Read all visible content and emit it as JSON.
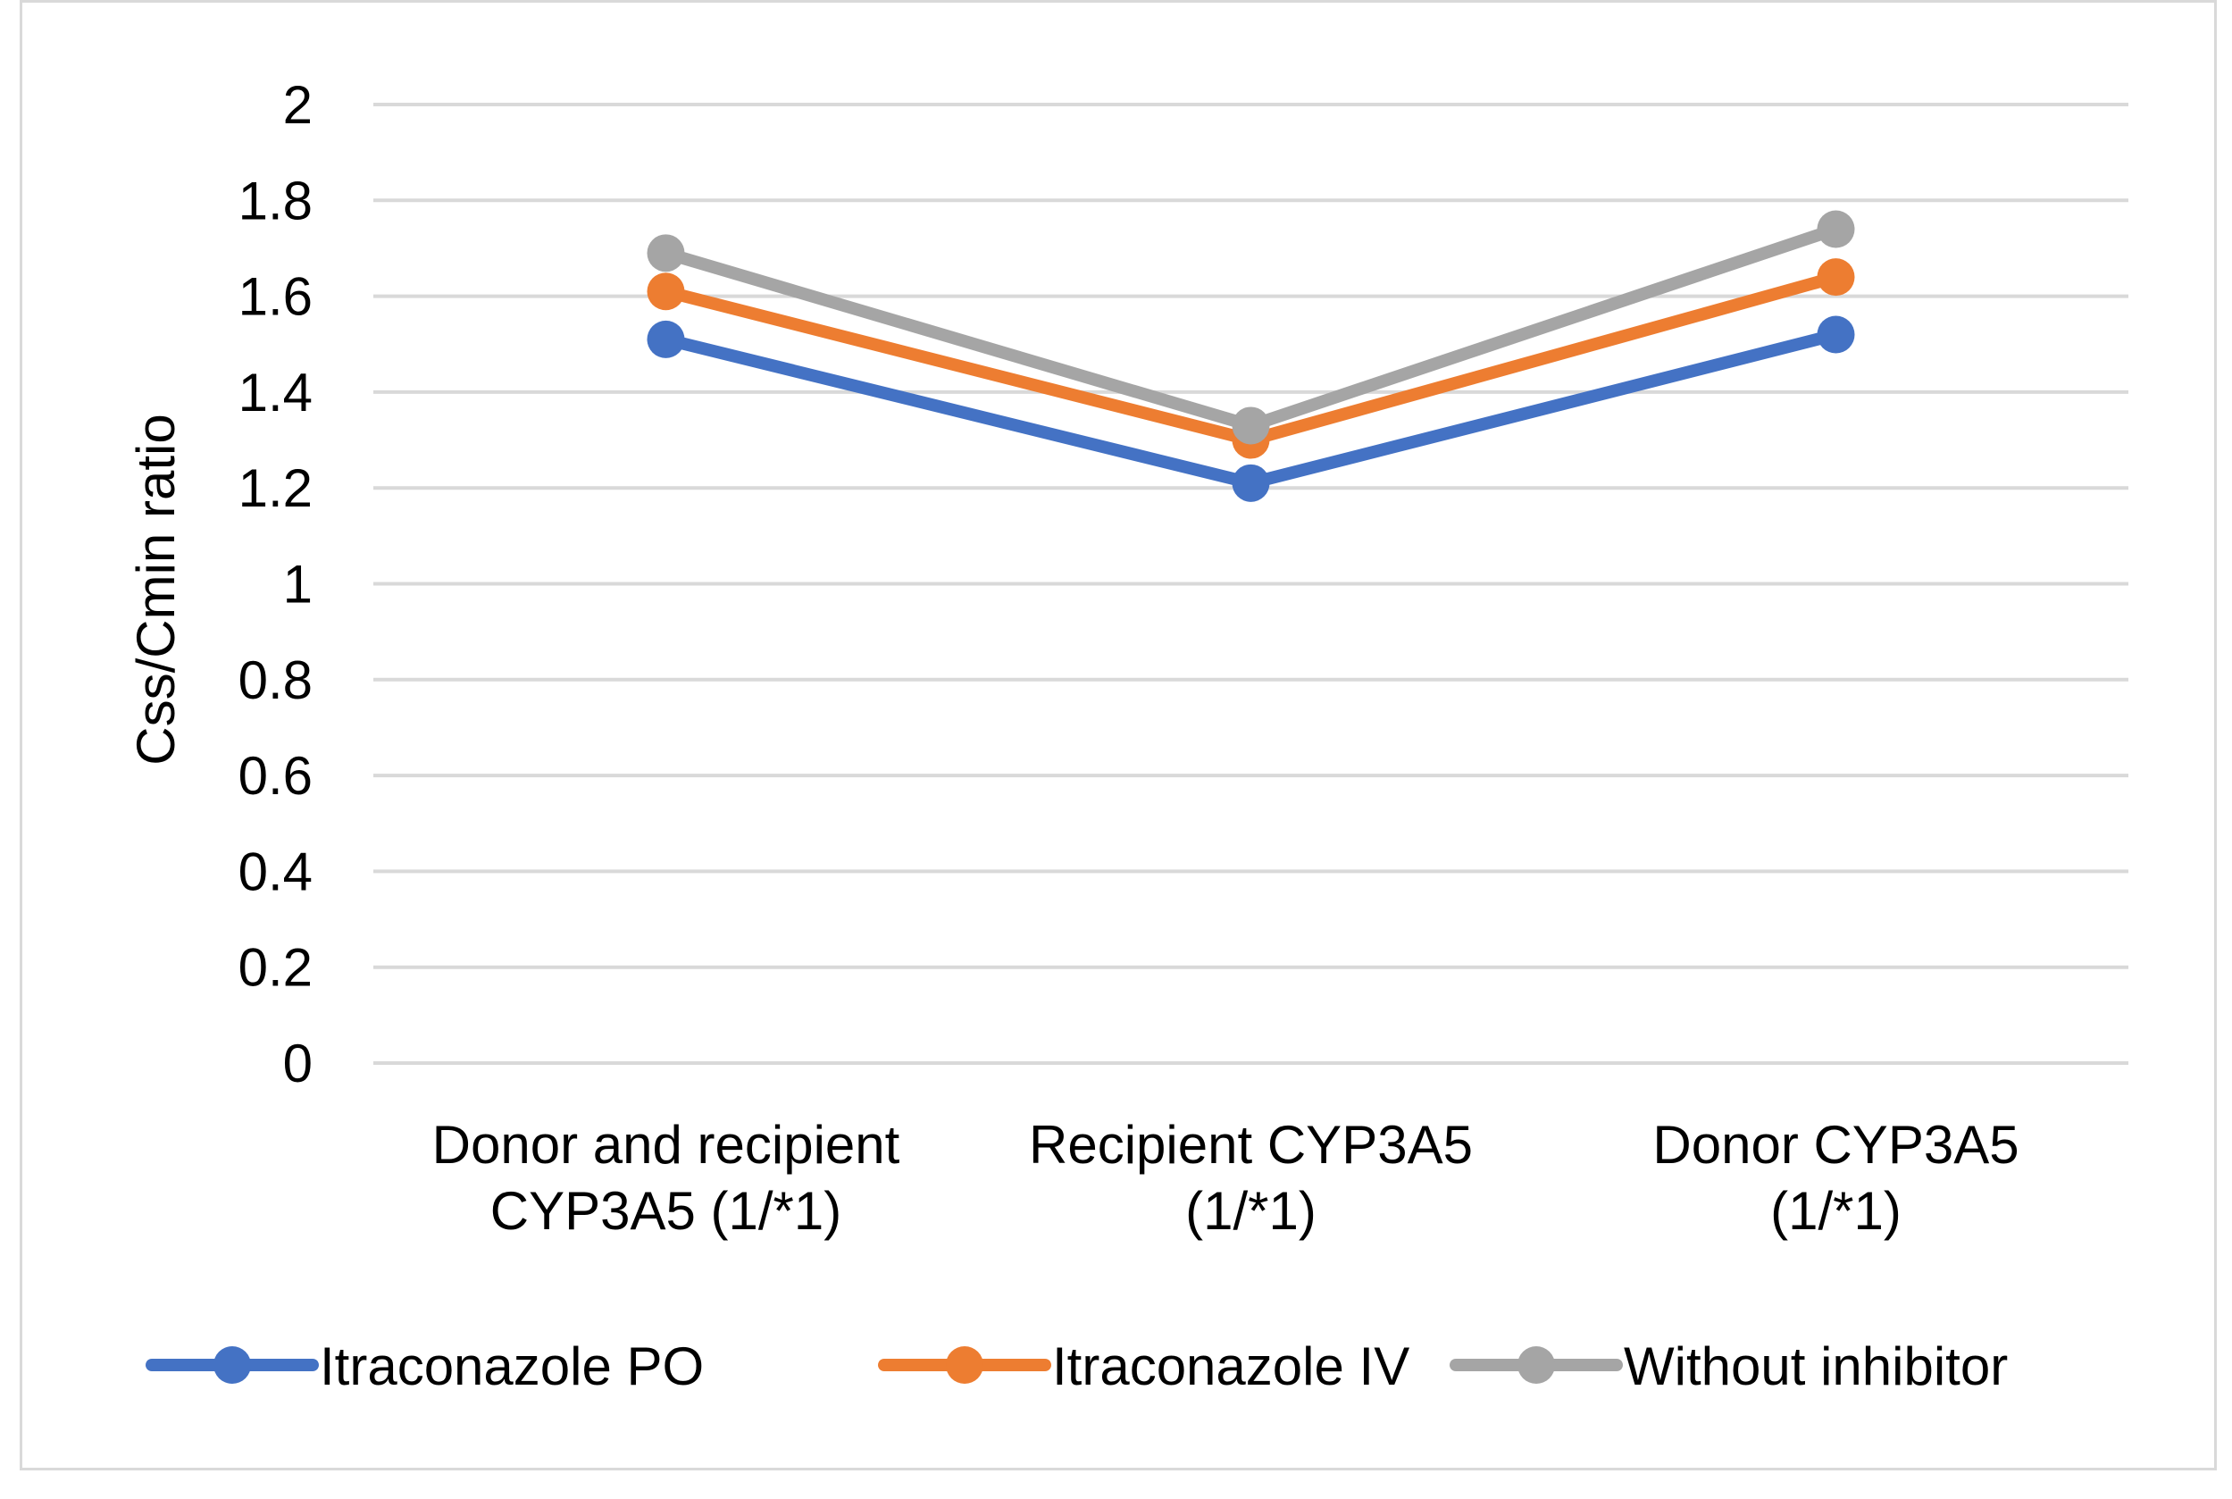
{
  "chart_data": {
    "type": "line",
    "title": "",
    "xlabel": "",
    "ylabel": "Css/Cmin ratio",
    "ylim": [
      0,
      2
    ],
    "yticks": [
      "0",
      "0.2",
      "0.4",
      "0.6",
      "0.8",
      "1",
      "1.2",
      "1.4",
      "1.6",
      "1.8",
      "2"
    ],
    "grid": true,
    "legend_position": "bottom",
    "categories": [
      [
        "Donor and recipient",
        "CYP3A5 (1/*1)"
      ],
      [
        "Recipient CYP3A5",
        "(1/*1)"
      ],
      [
        "Donor  CYP3A5",
        "(1/*1)"
      ]
    ],
    "series": [
      {
        "name": "Itraconazole PO",
        "color": "#4472c4",
        "values": [
          1.51,
          1.21,
          1.52
        ]
      },
      {
        "name": "Itraconazole IV",
        "color": "#ed7d31",
        "values": [
          1.61,
          1.3,
          1.64
        ]
      },
      {
        "name": "Without inhibitor",
        "color": "#a5a5a5",
        "values": [
          1.69,
          1.33,
          1.74
        ]
      }
    ]
  }
}
